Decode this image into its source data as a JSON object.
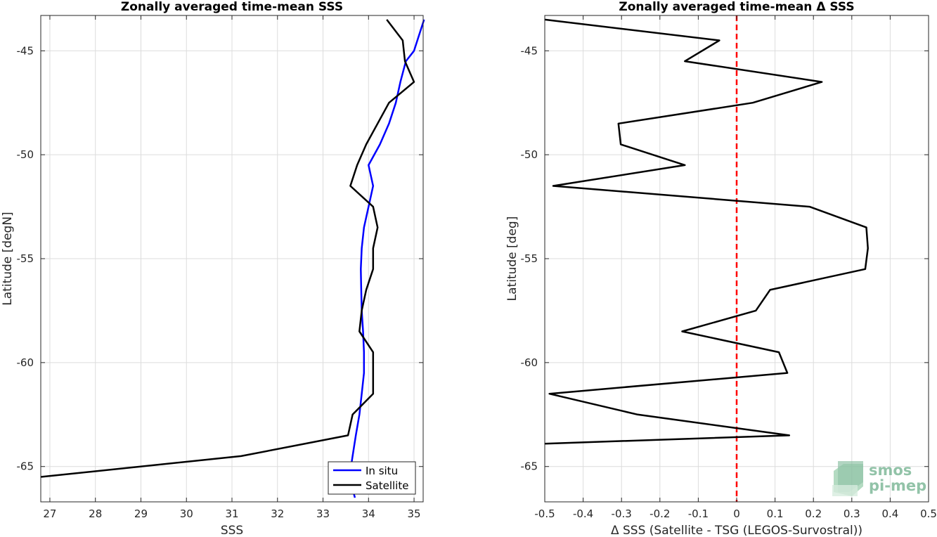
{
  "chart_data": [
    {
      "type": "line",
      "title": "Zonally averaged time-mean SSS",
      "xlabel": "SSS",
      "ylabel": "Latitude [degN]",
      "xlim": [
        26.8,
        35.2
      ],
      "ylim": [
        -66.7,
        -43.3
      ],
      "xticks": [
        27,
        28,
        29,
        30,
        31,
        32,
        33,
        34,
        35
      ],
      "yticks": [
        -45,
        -50,
        -55,
        -60,
        -65
      ],
      "grid": true,
      "legend_position": "bottom-right",
      "colors": {
        "in_situ": "#0000ff",
        "satellite": "#000000"
      },
      "series": [
        {
          "name": "In situ",
          "points": [
            [
              35.22,
              -43.5
            ],
            [
              35.0,
              -45.0
            ],
            [
              34.82,
              -45.5
            ],
            [
              34.7,
              -46.5
            ],
            [
              34.6,
              -47.5
            ],
            [
              34.45,
              -48.5
            ],
            [
              34.25,
              -49.5
            ],
            [
              34.0,
              -50.5
            ],
            [
              34.1,
              -51.5
            ],
            [
              34.0,
              -52.5
            ],
            [
              33.9,
              -53.5
            ],
            [
              33.85,
              -54.5
            ],
            [
              33.83,
              -55.5
            ],
            [
              33.84,
              -56.5
            ],
            [
              33.85,
              -57.5
            ],
            [
              33.88,
              -58.5
            ],
            [
              33.9,
              -59.5
            ],
            [
              33.9,
              -60.5
            ],
            [
              33.85,
              -61.5
            ],
            [
              33.8,
              -62.5
            ],
            [
              33.72,
              -63.5
            ],
            [
              33.65,
              -64.5
            ],
            [
              33.58,
              -65.5
            ],
            [
              33.7,
              -66.5
            ]
          ]
        },
        {
          "name": "Satellite",
          "points": [
            [
              34.4,
              -43.5
            ],
            [
              34.75,
              -44.5
            ],
            [
              34.8,
              -45.5
            ],
            [
              35.0,
              -46.5
            ],
            [
              34.45,
              -47.5
            ],
            [
              34.2,
              -48.5
            ],
            [
              33.95,
              -49.5
            ],
            [
              33.75,
              -50.5
            ],
            [
              33.6,
              -51.5
            ],
            [
              34.1,
              -52.5
            ],
            [
              34.2,
              -53.5
            ],
            [
              34.1,
              -54.5
            ],
            [
              34.1,
              -55.5
            ],
            [
              33.95,
              -56.5
            ],
            [
              33.85,
              -57.5
            ],
            [
              33.8,
              -58.5
            ],
            [
              34.1,
              -59.5
            ],
            [
              34.1,
              -60.5
            ],
            [
              34.1,
              -61.5
            ],
            [
              33.65,
              -62.5
            ],
            [
              33.55,
              -63.5
            ],
            [
              31.2,
              -64.5
            ],
            [
              26.8,
              -65.5
            ]
          ]
        }
      ]
    },
    {
      "type": "line",
      "title": "Zonally averaged time-mean Δ SSS",
      "xlabel": "Δ SSS (Satellite - TSG (LEGOS-Survostral))",
      "ylabel": "Latitude [deg]",
      "xlim": [
        -0.5,
        0.5
      ],
      "ylim": [
        -66.7,
        -43.3
      ],
      "xticks": [
        -0.5,
        -0.4,
        -0.3,
        -0.2,
        -0.1,
        0,
        0.1,
        0.2,
        0.3,
        0.4,
        0.5
      ],
      "yticks": [
        -45,
        -50,
        -55,
        -60,
        -65
      ],
      "grid": true,
      "reference_line": {
        "x": 0,
        "color": "#ff0000",
        "style": "dashed"
      },
      "colors": {
        "delta": "#000000"
      },
      "series": [
        {
          "points": [
            [
              -0.5,
              -43.5
            ],
            [
              -0.045,
              -44.5
            ],
            [
              -0.135,
              -45.5
            ],
            [
              0.222,
              -46.5
            ],
            [
              0.042,
              -47.5
            ],
            [
              -0.308,
              -48.5
            ],
            [
              -0.302,
              -49.5
            ],
            [
              -0.135,
              -50.5
            ],
            [
              -0.478,
              -51.5
            ],
            [
              0.19,
              -52.5
            ],
            [
              0.338,
              -53.5
            ],
            [
              0.342,
              -54.5
            ],
            [
              0.335,
              -55.5
            ],
            [
              0.087,
              -56.5
            ],
            [
              0.05,
              -57.5
            ],
            [
              -0.142,
              -58.5
            ],
            [
              0.11,
              -59.5
            ],
            [
              0.132,
              -60.5
            ],
            [
              -0.488,
              -61.5
            ],
            [
              -0.258,
              -62.5
            ],
            [
              0.137,
              -63.5
            ],
            [
              -0.5,
              -63.9
            ]
          ]
        }
      ]
    }
  ],
  "logo": {
    "line1": "smos",
    "line2": "pi-mep",
    "color": "#7fb99a"
  }
}
